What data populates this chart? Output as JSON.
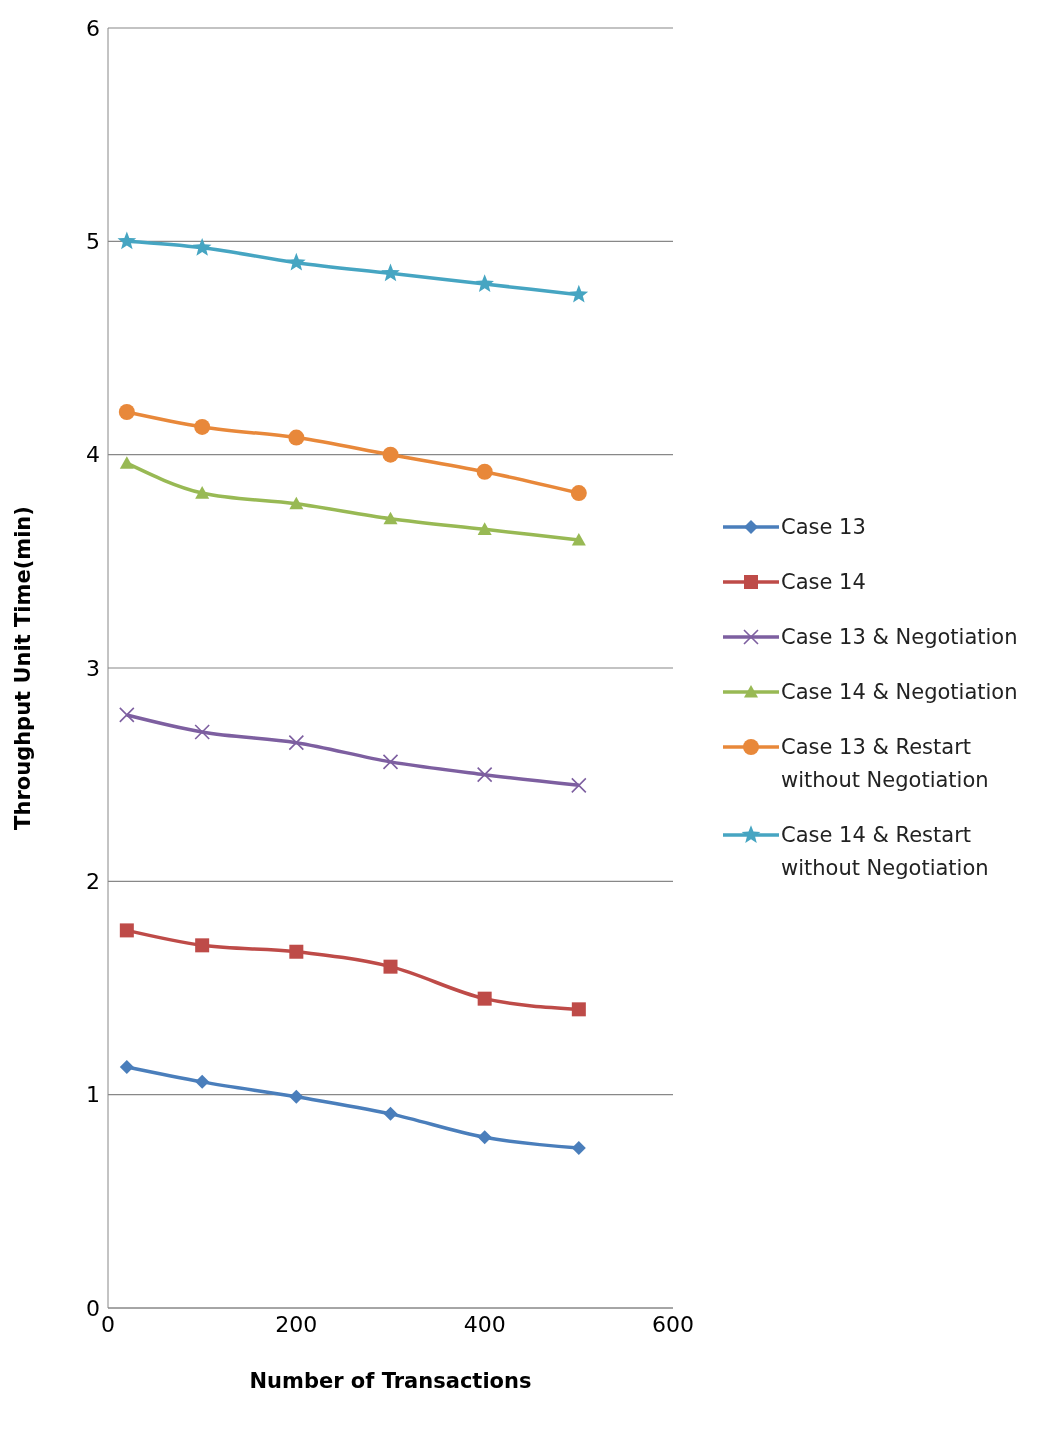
{
  "chart_data": {
    "type": "line",
    "xlabel": "Number of Transactions",
    "ylabel": "Throughput Unit Time(min)",
    "x": [
      20,
      100,
      200,
      300,
      400,
      500
    ],
    "series": [
      {
        "name": "Case 13",
        "color": "#4a7ebb",
        "marker": "diamond",
        "values": [
          1.13,
          1.06,
          0.99,
          0.91,
          0.8,
          0.75
        ]
      },
      {
        "name": "Case 14",
        "color": "#be4b48",
        "marker": "square",
        "values": [
          1.77,
          1.7,
          1.67,
          1.6,
          1.45,
          1.4
        ]
      },
      {
        "name": "Case 13 & Negotiation",
        "color": "#7d5fa0",
        "marker": "cross",
        "values": [
          2.78,
          2.7,
          2.65,
          2.56,
          2.5,
          2.45
        ]
      },
      {
        "name": "Case 14 & Negotiation",
        "color": "#98b954",
        "marker": "triangle",
        "values": [
          3.96,
          3.82,
          3.77,
          3.7,
          3.65,
          3.6
        ]
      },
      {
        "name": "Case 13 & Restart without Negotiation",
        "color": "#e8883a",
        "marker": "circle",
        "values": [
          4.2,
          4.13,
          4.08,
          4.0,
          3.92,
          3.82
        ]
      },
      {
        "name": "Case 14 & Restart without Negotiation",
        "color": "#46a5c2",
        "marker": "star",
        "values": [
          5.0,
          4.97,
          4.9,
          4.85,
          4.8,
          4.75
        ]
      }
    ],
    "xlim": [
      0,
      600
    ],
    "xticks": [
      0,
      200,
      400,
      600
    ],
    "ylim": [
      0,
      6
    ],
    "yticks": [
      0,
      1,
      2,
      3,
      4,
      5,
      6
    ],
    "grid": "y",
    "legend": "right",
    "line_style": "solid"
  }
}
